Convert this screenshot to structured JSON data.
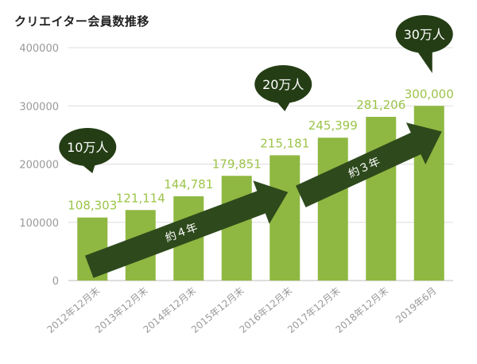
{
  "page_title": "クリエイター会員数推移",
  "colors": {
    "bar": "#8fb842",
    "value_label": "#9cc449",
    "arrow": "#2e4a1c",
    "bubble": "#243d15",
    "grid": "#dddddd",
    "axis_text": "#999999"
  },
  "chart_data": {
    "type": "bar",
    "title": "クリエイター会員数推移",
    "xlabel": "",
    "ylabel": "",
    "ylim": [
      0,
      400000
    ],
    "yticks": [
      0,
      100000,
      200000,
      300000,
      400000
    ],
    "ytick_labels": [
      "0",
      "100000",
      "200000",
      "300000",
      "400000"
    ],
    "grid": true,
    "categories": [
      "2012年12月末",
      "2013年12月末",
      "2014年12月末",
      "2015年12月末",
      "2016年12月末",
      "2017年12月末",
      "2018年12月末",
      "2019年6月"
    ],
    "values": [
      108303,
      121114,
      144781,
      179851,
      215181,
      245399,
      281206,
      300000
    ],
    "value_labels": [
      "108,303",
      "121,114",
      "144,781",
      "179,851",
      "215,181",
      "245,399",
      "281,206",
      "300,000"
    ],
    "callouts": [
      {
        "text": "10万人",
        "category_index": 0
      },
      {
        "text": "20万人",
        "category_index": 4
      },
      {
        "text": "30万人",
        "category_index": 7
      }
    ],
    "annotations": [
      {
        "text": "約４年",
        "from_index": 0,
        "to_index": 4
      },
      {
        "text": "約３年",
        "from_index": 4,
        "to_index": 7
      }
    ]
  }
}
